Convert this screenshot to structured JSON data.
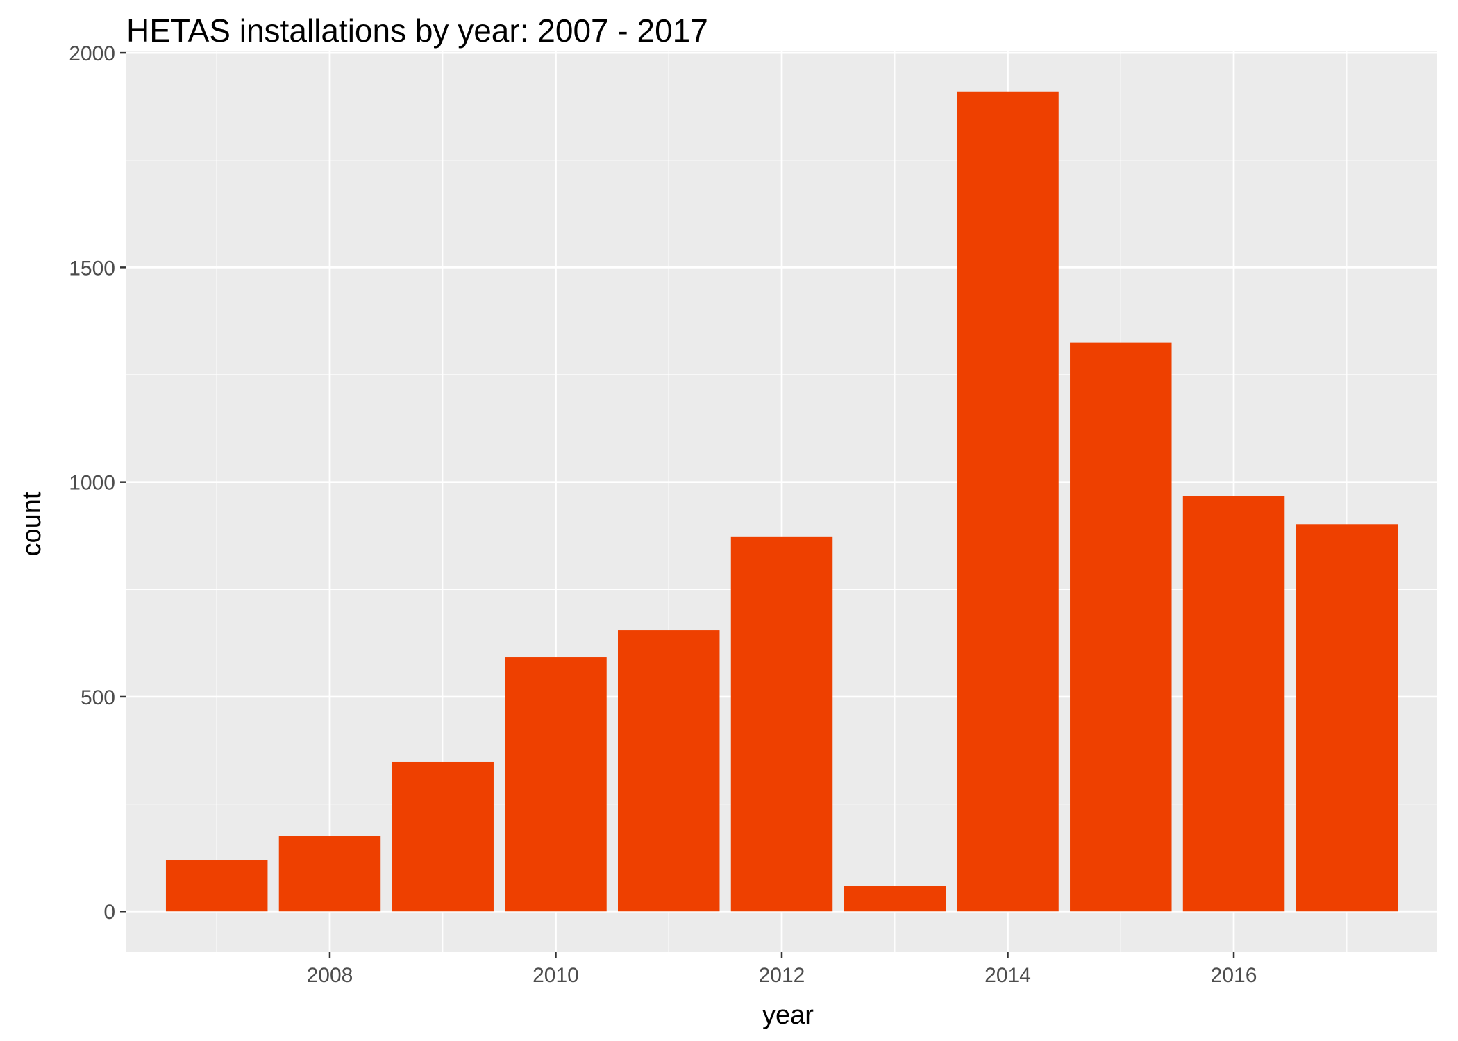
{
  "chart_data": {
    "type": "bar",
    "title": "HETAS installations by year: 2007 - 2017",
    "xlabel": "year",
    "ylabel": "count",
    "categories": [
      2007,
      2008,
      2009,
      2010,
      2011,
      2012,
      2013,
      2014,
      2015,
      2016,
      2017
    ],
    "values": [
      120,
      175,
      348,
      592,
      655,
      872,
      60,
      1910,
      1325,
      968,
      902
    ],
    "xlim": [
      2006.2,
      2017.8
    ],
    "ylim": [
      -95,
      2005
    ],
    "x_ticks": [
      2008,
      2010,
      2012,
      2014,
      2016
    ],
    "y_ticks": [
      0,
      500,
      1000,
      1500,
      2000
    ],
    "bar_color": "#EE4000",
    "panel_background": "#EBEBEB",
    "grid": true,
    "legend": "none"
  }
}
